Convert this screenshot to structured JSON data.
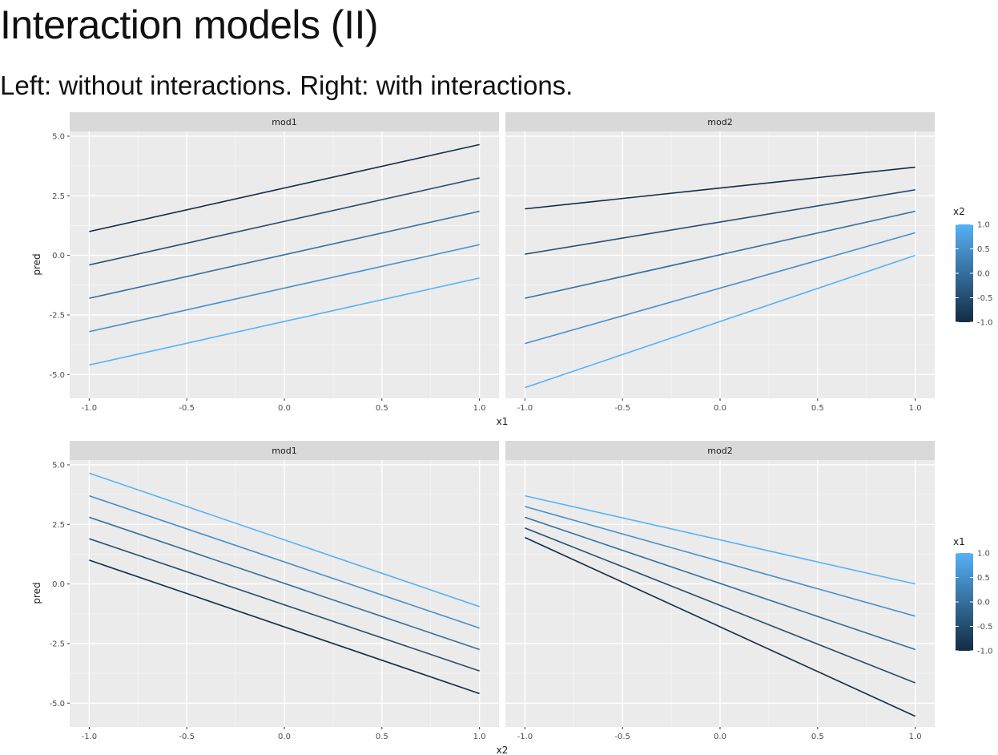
{
  "slide": {
    "title": "Interaction models (II)",
    "subtitle": "Left: without interactions. Right: with interactions."
  },
  "colors": {
    "panel_bg": "#ebebeb",
    "strip_bg": "#d9d9d9",
    "grid_major": "#ffffff",
    "gradient_low": "#132b43",
    "gradient_high": "#56b1f7",
    "axis_text": "#4d4d4d"
  },
  "chart_data": [
    {
      "type": "line",
      "facet_panels": [
        "mod1",
        "mod2"
      ],
      "xlabel": "x1",
      "ylabel": "pred",
      "xlim": [
        -1.1,
        1.1
      ],
      "ylim": [
        -6.0,
        5.2
      ],
      "x_ticks": [
        -1.0,
        -0.5,
        0.0,
        0.5,
        1.0
      ],
      "x_tick_labels": [
        "-1.0",
        "-0.5",
        "0.0",
        "0.5",
        "1.0"
      ],
      "y_ticks": [
        5.0,
        2.5,
        0.0,
        -2.5,
        -5.0
      ],
      "y_tick_labels": [
        "5.0",
        "2.5",
        "0.0",
        "-2.5",
        "-5.0"
      ],
      "grid": true,
      "legend": {
        "title": "x2",
        "placement": "right",
        "ticks": [
          1.0,
          0.5,
          0.0,
          -0.5,
          -1.0
        ],
        "tick_labels": [
          "1.0",
          "0.5",
          "0.0",
          "-0.5",
          "-1.0"
        ]
      },
      "panels": [
        {
          "name": "mod1",
          "series": [
            {
              "color_value": -1.0,
              "x": [
                -1.0,
                1.0
              ],
              "y": [
                1.0,
                4.65
              ]
            },
            {
              "color_value": -0.5,
              "x": [
                -1.0,
                1.0
              ],
              "y": [
                -0.4,
                3.25
              ]
            },
            {
              "color_value": 0.0,
              "x": [
                -1.0,
                1.0
              ],
              "y": [
                -1.8,
                1.85
              ]
            },
            {
              "color_value": 0.5,
              "x": [
                -1.0,
                1.0
              ],
              "y": [
                -3.2,
                0.45
              ]
            },
            {
              "color_value": 1.0,
              "x": [
                -1.0,
                1.0
              ],
              "y": [
                -4.6,
                -0.95
              ]
            }
          ]
        },
        {
          "name": "mod2",
          "series": [
            {
              "color_value": -1.0,
              "x": [
                -1.0,
                1.0
              ],
              "y": [
                1.95,
                3.7
              ]
            },
            {
              "color_value": -0.5,
              "x": [
                -1.0,
                1.0
              ],
              "y": [
                0.05,
                2.75
              ]
            },
            {
              "color_value": 0.0,
              "x": [
                -1.0,
                1.0
              ],
              "y": [
                -1.8,
                1.85
              ]
            },
            {
              "color_value": 0.5,
              "x": [
                -1.0,
                1.0
              ],
              "y": [
                -3.7,
                0.95
              ]
            },
            {
              "color_value": 1.0,
              "x": [
                -1.0,
                1.0
              ],
              "y": [
                -5.55,
                0.0
              ]
            }
          ]
        }
      ]
    },
    {
      "type": "line",
      "facet_panels": [
        "mod1",
        "mod2"
      ],
      "xlabel": "x2",
      "ylabel": "pred",
      "xlim": [
        -1.1,
        1.1
      ],
      "ylim": [
        -6.0,
        5.2
      ],
      "x_ticks": [
        -1.0,
        -0.5,
        0.0,
        0.5,
        1.0
      ],
      "x_tick_labels": [
        "-1.0",
        "-0.5",
        "0.0",
        "0.5",
        "1.0"
      ],
      "y_ticks": [
        5.0,
        2.5,
        0.0,
        -2.5,
        -5.0
      ],
      "y_tick_labels": [
        "5.0",
        "2.5",
        "0.0",
        "-2.5",
        "-5.0"
      ],
      "grid": true,
      "legend": {
        "title": "x1",
        "placement": "right",
        "ticks": [
          1.0,
          0.5,
          0.0,
          -0.5,
          -1.0
        ],
        "tick_labels": [
          "1.0",
          "0.5",
          "0.0",
          "-0.5",
          "-1.0"
        ]
      },
      "panels": [
        {
          "name": "mod1",
          "series": [
            {
              "color_value": 1.0,
              "x": [
                -1.0,
                1.0
              ],
              "y": [
                4.65,
                -0.95
              ]
            },
            {
              "color_value": 0.5,
              "x": [
                -1.0,
                1.0
              ],
              "y": [
                3.7,
                -1.85
              ]
            },
            {
              "color_value": 0.0,
              "x": [
                -1.0,
                1.0
              ],
              "y": [
                2.8,
                -2.75
              ]
            },
            {
              "color_value": -0.5,
              "x": [
                -1.0,
                1.0
              ],
              "y": [
                1.9,
                -3.65
              ]
            },
            {
              "color_value": -1.0,
              "x": [
                -1.0,
                1.0
              ],
              "y": [
                1.0,
                -4.6
              ]
            }
          ]
        },
        {
          "name": "mod2",
          "series": [
            {
              "color_value": 1.0,
              "x": [
                -1.0,
                1.0
              ],
              "y": [
                3.7,
                0.0
              ]
            },
            {
              "color_value": 0.5,
              "x": [
                -1.0,
                1.0
              ],
              "y": [
                3.25,
                -1.35
              ]
            },
            {
              "color_value": 0.0,
              "x": [
                -1.0,
                1.0
              ],
              "y": [
                2.8,
                -2.75
              ]
            },
            {
              "color_value": -0.5,
              "x": [
                -1.0,
                1.0
              ],
              "y": [
                2.35,
                -4.15
              ]
            },
            {
              "color_value": -1.0,
              "x": [
                -1.0,
                1.0
              ],
              "y": [
                1.95,
                -5.55
              ]
            }
          ]
        }
      ]
    }
  ]
}
